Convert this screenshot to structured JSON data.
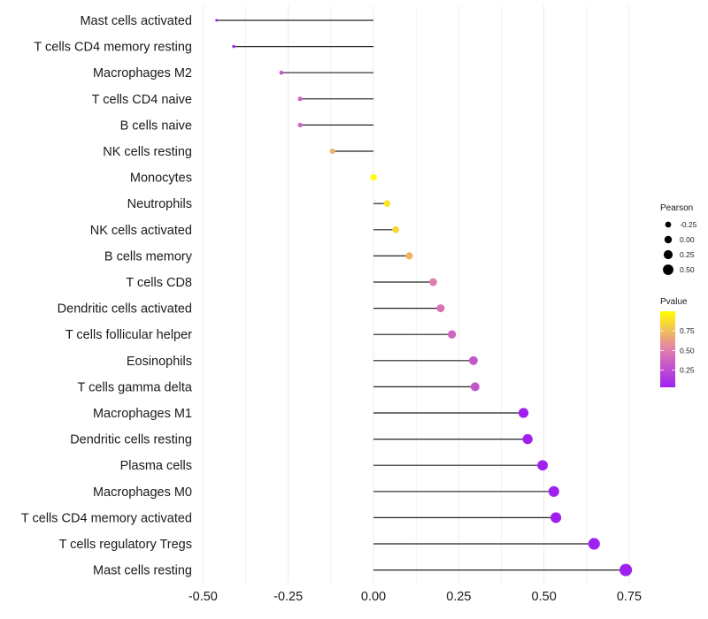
{
  "chart_data": {
    "type": "lollipop",
    "title": "",
    "xlabel": "",
    "ylabel": "",
    "xlim": [
      -0.55,
      0.79
    ],
    "x_ticks": [
      -0.5,
      -0.25,
      0.0,
      0.25,
      0.5,
      0.75
    ],
    "x_tick_labels": [
      "-0.50",
      "-0.25",
      "0.00",
      "0.25",
      "0.50",
      "0.75"
    ],
    "grid": true,
    "categories": [
      "Mast cells activated",
      "T cells CD4 memory resting",
      "Macrophages M2",
      "T cells CD4 naive",
      "B cells naive",
      "NK cells resting",
      "Monocytes",
      "Neutrophils",
      "NK cells activated",
      "B cells memory",
      "T cells CD8",
      "Dendritic cells activated",
      "T cells follicular helper",
      "Eosinophils",
      "T cells gamma delta",
      "Macrophages M1",
      "Dendritic cells resting",
      "Plasma cells",
      "Macrophages M0",
      "T cells CD4 memory activated",
      "T cells regulatory  Tregs ",
      "Mast cells resting"
    ],
    "series": [
      {
        "name": "Pearson",
        "values": [
          -0.46,
          -0.41,
          -0.27,
          -0.215,
          -0.215,
          -0.12,
          0.0,
          0.04,
          0.065,
          0.105,
          0.175,
          0.197,
          0.23,
          0.293,
          0.298,
          0.44,
          0.452,
          0.496,
          0.529,
          0.535,
          0.647,
          0.74
        ]
      },
      {
        "name": "Pvalue",
        "values": [
          0.03,
          0.06,
          0.3,
          0.38,
          0.4,
          0.7,
          0.99,
          0.9,
          0.85,
          0.72,
          0.5,
          0.45,
          0.38,
          0.3,
          0.3,
          0.03,
          0.03,
          0.03,
          0.03,
          0.03,
          0.03,
          0.03
        ]
      }
    ],
    "legend": {
      "position": "right",
      "size_title": "Pearson",
      "size_breaks": [
        -0.25,
        0.0,
        0.25,
        0.5
      ],
      "size_labels": [
        "-0.25",
        "0.00",
        "0.25",
        "0.50"
      ],
      "color_title": "Pvalue",
      "color_range": [
        0.03,
        1.0
      ],
      "color_breaks": [
        0.25,
        0.5,
        0.75
      ],
      "color_labels": [
        "0.25",
        "0.50",
        "0.75"
      ],
      "color_low": "#a020f0",
      "color_mid": "#e27fae",
      "color_high": "#ffff00"
    }
  }
}
